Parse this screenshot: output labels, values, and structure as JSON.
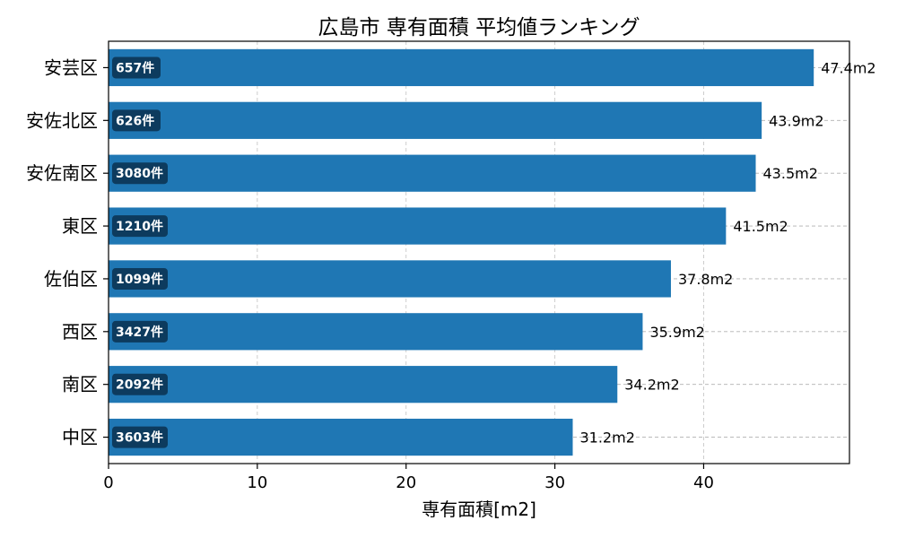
{
  "chart_data": {
    "type": "bar",
    "orientation": "horizontal",
    "title": "広島市 専有面積 平均値ランキング",
    "xlabel": "専有面積[m2]",
    "ylabel": "",
    "xlim": [
      0,
      49.8
    ],
    "xticks": [
      "0",
      "10",
      "20",
      "30",
      "40"
    ],
    "grid": true,
    "bar_color": "#1f77b4",
    "badge_color": "#0d3b5e",
    "value_suffix": "m2",
    "count_suffix": "件",
    "categories": [
      "安芸区",
      "安佐北区",
      "安佐南区",
      "東区",
      "佐伯区",
      "西区",
      "南区",
      "中区"
    ],
    "values": [
      47.4,
      43.9,
      43.5,
      41.5,
      37.8,
      35.9,
      34.2,
      31.2
    ],
    "value_labels": [
      "47.4m2",
      "43.9m2",
      "43.5m2",
      "41.5m2",
      "37.8m2",
      "35.9m2",
      "34.2m2",
      "31.2m2"
    ],
    "counts": [
      "657件",
      "626件",
      "3080件",
      "1210件",
      "1099件",
      "3427件",
      "2092件",
      "3603件"
    ]
  }
}
